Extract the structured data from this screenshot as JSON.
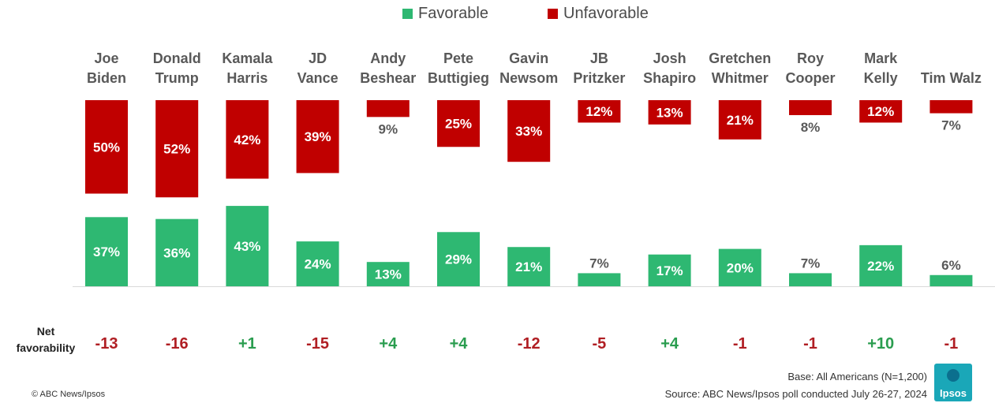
{
  "legend": {
    "favorable": "Favorable",
    "unfavorable": "Unfavorable"
  },
  "colors": {
    "favorable": "#2eb872",
    "unfavorable": "#c00000",
    "net_positive": "#2a9d4f",
    "net_negative": "#b01e23"
  },
  "net_label": "Net favorability",
  "footer": {
    "copyright": "© ABC News/Ipsos",
    "base": "Base: All Americans (N=1,200)",
    "source": "Source: ABC News/Ipsos poll conducted July 26-27, 2024",
    "logo_text": "Ipsos"
  },
  "chart_data": {
    "type": "bar",
    "categories": [
      [
        "Joe",
        "Biden"
      ],
      [
        "Donald",
        "Trump"
      ],
      [
        "Kamala",
        "Harris"
      ],
      [
        "JD",
        "Vance"
      ],
      [
        "Andy",
        "Beshear"
      ],
      [
        "Pete",
        "Buttigieg"
      ],
      [
        "Gavin",
        "Newsom"
      ],
      [
        "JB",
        "Pritzker"
      ],
      [
        "Josh",
        "Shapiro"
      ],
      [
        "Gretchen",
        "Whitmer"
      ],
      [
        "Roy",
        "Cooper"
      ],
      [
        "Mark",
        "Kelly"
      ],
      [
        "Tim Walz"
      ]
    ],
    "series": [
      {
        "name": "Favorable",
        "values": [
          37,
          36,
          43,
          24,
          13,
          29,
          21,
          7,
          17,
          20,
          7,
          22,
          6
        ]
      },
      {
        "name": "Unfavorable",
        "values": [
          50,
          52,
          42,
          39,
          9,
          25,
          33,
          12,
          13,
          21,
          8,
          12,
          7
        ]
      }
    ],
    "net": [
      "-13",
      "-16",
      "+1",
      "-15",
      "+4",
      "+4",
      "-12",
      "-5",
      "+4",
      "-1",
      "-1",
      "+10",
      "-1"
    ],
    "unit": "%"
  }
}
